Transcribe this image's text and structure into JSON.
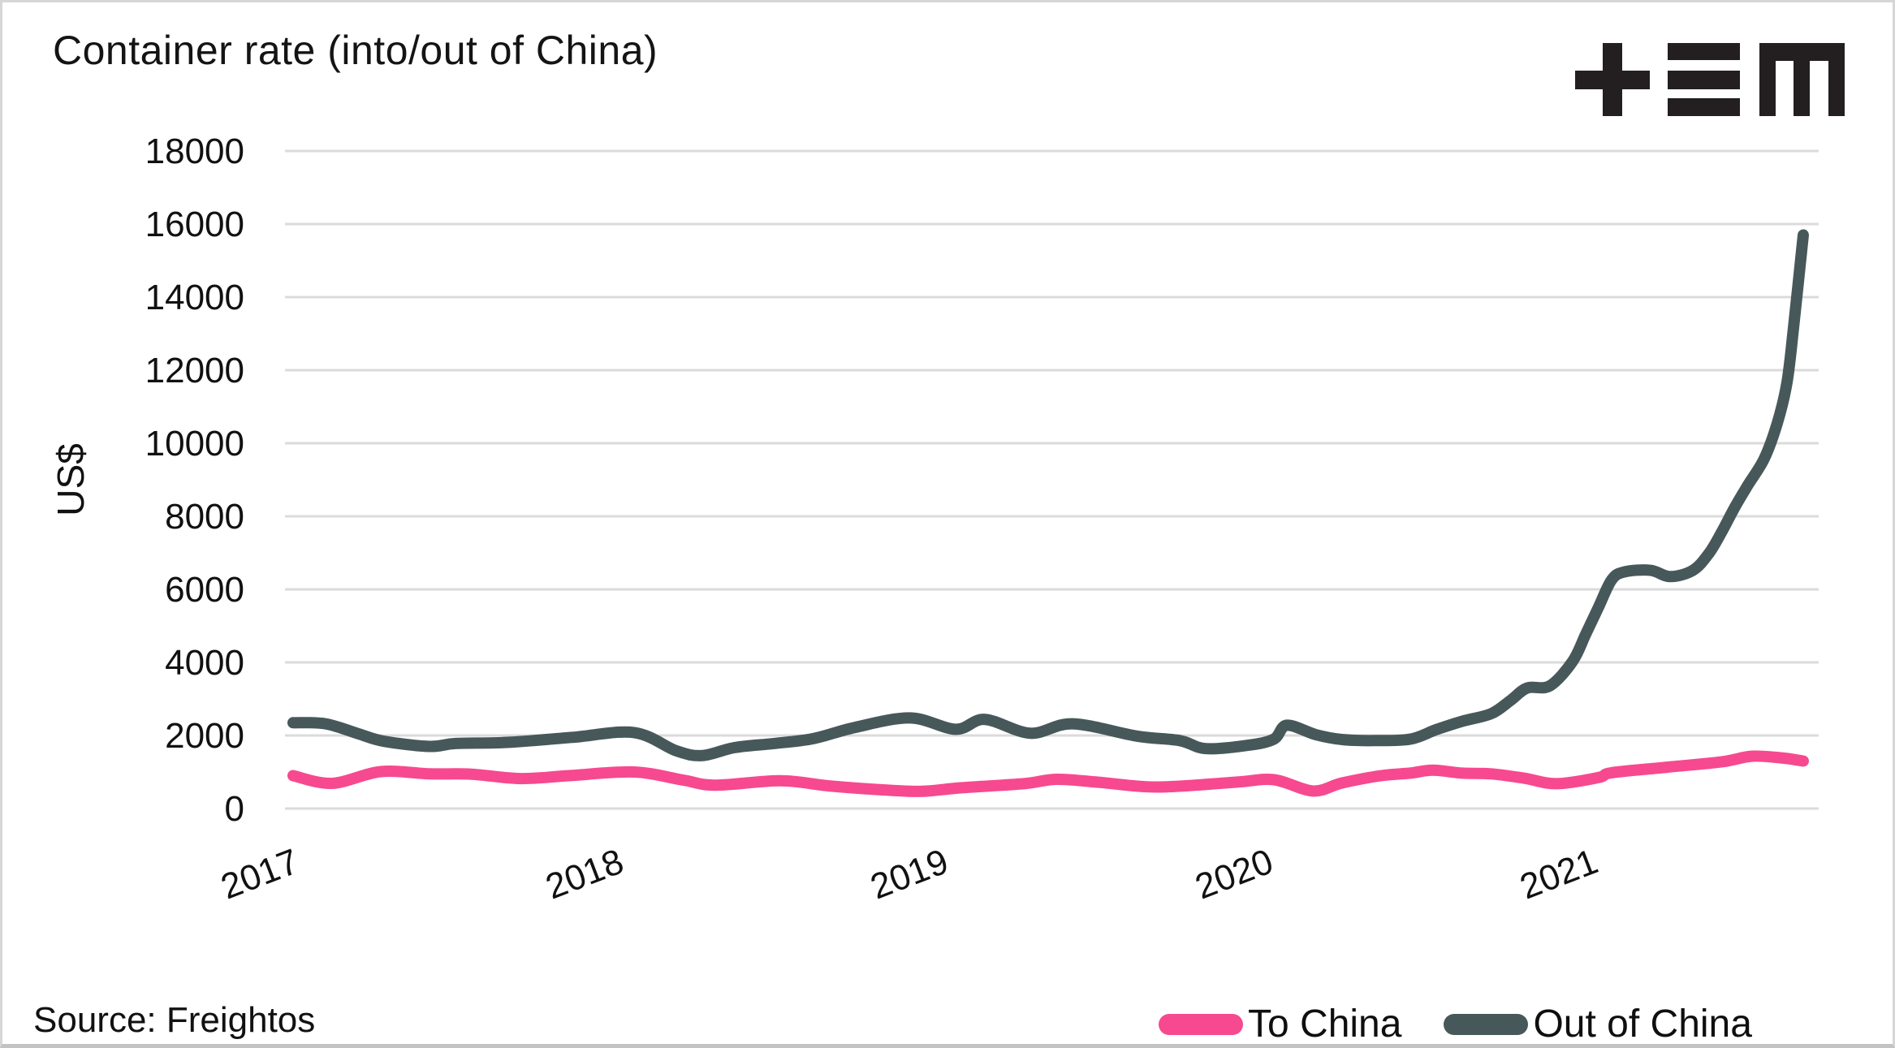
{
  "title": "Container rate (into/out of China)",
  "source": "Source: Freightos",
  "logo": {
    "name": "plus-equals-m-brand-logo",
    "color": "#231f20"
  },
  "colors": {
    "to_china": "#F7498F",
    "out_of_china": "#47585A",
    "grid": "#DBDBDB",
    "text": "#111111"
  },
  "legend": [
    {
      "label": "To China",
      "color": "#F7498F"
    },
    {
      "label": "Out of China",
      "color": "#47585A"
    }
  ],
  "chart_data": {
    "type": "line",
    "title": "Container rate (into/out of China)",
    "xlabel": "",
    "ylabel": "US$",
    "ylim": [
      0,
      18000
    ],
    "xlim": [
      2017.0,
      2021.72
    ],
    "y_ticks": [
      0,
      2000,
      4000,
      6000,
      8000,
      10000,
      12000,
      14000,
      16000,
      18000
    ],
    "x_ticks": [
      2017,
      2018,
      2019,
      2020,
      2021
    ],
    "grid": "horizontal",
    "legend_position": "bottom-right",
    "series": [
      {
        "name": "To China",
        "color": "#F7498F",
        "points": [
          [
            2017.0,
            900
          ],
          [
            2017.12,
            690
          ],
          [
            2017.27,
            1010
          ],
          [
            2017.42,
            950
          ],
          [
            2017.55,
            940
          ],
          [
            2017.7,
            820
          ],
          [
            2017.85,
            900
          ],
          [
            2018.05,
            1000
          ],
          [
            2018.2,
            780
          ],
          [
            2018.3,
            640
          ],
          [
            2018.5,
            760
          ],
          [
            2018.65,
            620
          ],
          [
            2018.8,
            520
          ],
          [
            2018.93,
            470
          ],
          [
            2019.06,
            570
          ],
          [
            2019.25,
            680
          ],
          [
            2019.35,
            800
          ],
          [
            2019.48,
            720
          ],
          [
            2019.66,
            590
          ],
          [
            2019.9,
            720
          ],
          [
            2020.02,
            790
          ],
          [
            2020.14,
            480
          ],
          [
            2020.23,
            700
          ],
          [
            2020.35,
            900
          ],
          [
            2020.44,
            970
          ],
          [
            2020.51,
            1050
          ],
          [
            2020.6,
            970
          ],
          [
            2020.69,
            950
          ],
          [
            2020.79,
            830
          ],
          [
            2020.89,
            680
          ],
          [
            2021.02,
            850
          ],
          [
            2021.06,
            980
          ],
          [
            2021.23,
            1130
          ],
          [
            2021.4,
            1280
          ],
          [
            2021.49,
            1430
          ],
          [
            2021.58,
            1390
          ],
          [
            2021.65,
            1300
          ]
        ]
      },
      {
        "name": "Out of China",
        "color": "#47585A",
        "points": [
          [
            2017.0,
            2350
          ],
          [
            2017.1,
            2320
          ],
          [
            2017.2,
            2050
          ],
          [
            2017.28,
            1840
          ],
          [
            2017.42,
            1700
          ],
          [
            2017.5,
            1780
          ],
          [
            2017.66,
            1810
          ],
          [
            2017.86,
            1950
          ],
          [
            2018.05,
            2080
          ],
          [
            2018.18,
            1580
          ],
          [
            2018.26,
            1450
          ],
          [
            2018.36,
            1670
          ],
          [
            2018.48,
            1780
          ],
          [
            2018.6,
            1910
          ],
          [
            2018.73,
            2220
          ],
          [
            2018.9,
            2480
          ],
          [
            2019.04,
            2170
          ],
          [
            2019.13,
            2440
          ],
          [
            2019.27,
            2060
          ],
          [
            2019.4,
            2320
          ],
          [
            2019.6,
            1980
          ],
          [
            2019.73,
            1860
          ],
          [
            2019.81,
            1640
          ],
          [
            2019.94,
            1730
          ],
          [
            2020.02,
            1900
          ],
          [
            2020.06,
            2280
          ],
          [
            2020.15,
            2020
          ],
          [
            2020.23,
            1890
          ],
          [
            2020.33,
            1860
          ],
          [
            2020.44,
            1900
          ],
          [
            2020.52,
            2160
          ],
          [
            2020.6,
            2390
          ],
          [
            2020.69,
            2600
          ],
          [
            2020.75,
            2970
          ],
          [
            2020.8,
            3300
          ],
          [
            2020.87,
            3360
          ],
          [
            2020.94,
            4030
          ],
          [
            2020.98,
            4770
          ],
          [
            2021.02,
            5520
          ],
          [
            2021.06,
            6260
          ],
          [
            2021.1,
            6480
          ],
          [
            2021.18,
            6520
          ],
          [
            2021.24,
            6350
          ],
          [
            2021.31,
            6520
          ],
          [
            2021.36,
            6990
          ],
          [
            2021.4,
            7590
          ],
          [
            2021.44,
            8260
          ],
          [
            2021.48,
            8860
          ],
          [
            2021.53,
            9580
          ],
          [
            2021.57,
            10550
          ],
          [
            2021.6,
            11670
          ],
          [
            2021.62,
            13160
          ],
          [
            2021.65,
            15700
          ]
        ]
      }
    ]
  }
}
